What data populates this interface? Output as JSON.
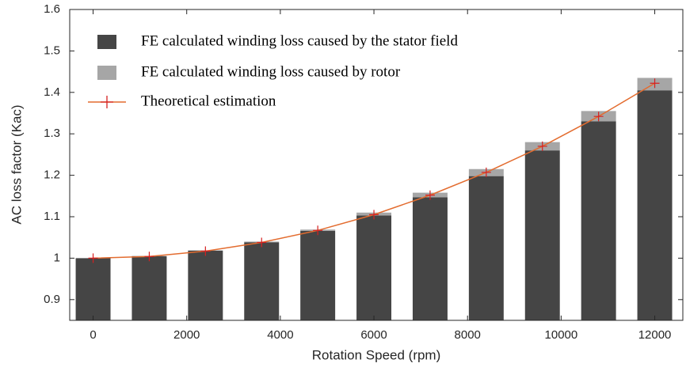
{
  "chart_data": {
    "type": "bar",
    "x": [
      0,
      1200,
      2400,
      3600,
      4800,
      6000,
      7200,
      8400,
      9600,
      10800,
      12000
    ],
    "series": [
      {
        "name": "FE calculated winding loss caused by the stator field",
        "type": "bar",
        "color": "#454545",
        "values": [
          1.0,
          1.005,
          1.018,
          1.038,
          1.066,
          1.103,
          1.147,
          1.198,
          1.26,
          1.33,
          1.405
        ]
      },
      {
        "name": "FE calculated winding loss caused by rotor",
        "type": "bar",
        "color": "#a6a6a6",
        "values": [
          0,
          0,
          0.001,
          0.002,
          0.003,
          0.007,
          0.011,
          0.017,
          0.02,
          0.025,
          0.03
        ]
      },
      {
        "name": "Theoretical estimation",
        "type": "line",
        "color": "#e36c2f",
        "marker_color": "#d62020",
        "values": [
          1.0,
          1.004,
          1.017,
          1.038,
          1.067,
          1.105,
          1.152,
          1.207,
          1.27,
          1.342,
          1.422
        ]
      }
    ],
    "x_label": "Rotation Speed (rpm)",
    "y_label": "AC loss factor (Kac)",
    "xlim": [
      -500,
      12600
    ],
    "ylim": [
      0.85,
      1.6
    ],
    "xticks": [
      0,
      2000,
      4000,
      6000,
      8000,
      10000,
      12000
    ],
    "yticks": [
      0.9,
      1,
      1.1,
      1.2,
      1.3,
      1.4,
      1.5,
      1.6
    ],
    "legend": "upper left"
  }
}
